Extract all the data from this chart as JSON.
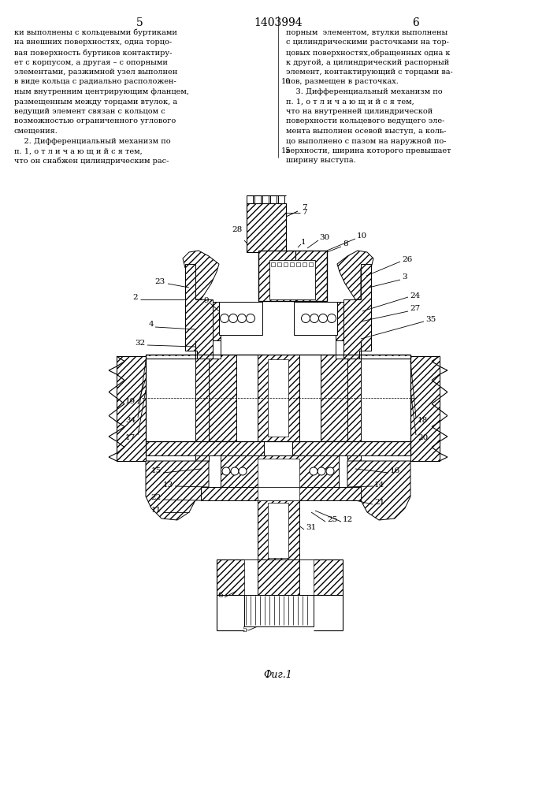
{
  "page_number_left": "5",
  "page_number_center": "1403994",
  "page_number_right": "6",
  "figure_caption": "Фиг.1",
  "left_col": [
    "ки выполнены с кольцевыми буртиками",
    "на внешних поверхностях, одна торцо-",
    "вая поверхность буртиков контактиру-",
    "ет с корпусом, а другая – с опорными",
    "элементами, разжимной узел выполнен",
    "в виде кольца с радиально расположен-",
    "ным внутренним центрирующим фланцем,",
    "размещенным между торцами втулок, а",
    "ведущий элемент связан с кольцом с",
    "возможностью ограниченного углового",
    "смещения.",
    "    2. Дифференциальный механизм по",
    "п. 1, о т л и ч а ю щ и й с я тем,",
    "что он снабжен цилиндрическим рас-"
  ],
  "right_col": [
    "порным  элементом, втулки выполнены",
    "с цилиндрическими расточками на тор-",
    "цовых поверхностях,обращенных одна к",
    "к другой, а цилиндрический распорный",
    "элемент, контактирующий с торцами ва-",
    "лов, размещен в расточках.",
    "    3. Дифференциальный механизм по",
    "п. 1, о т л и ч а ю щ и й с я тем,",
    "что на внутренней цилиндрической",
    "поверхности кольцевого ведущего эле-",
    "мента выполнен осевой выступ, а коль-",
    "цо выполнено с пазом на наружной по-",
    "верхности, ширина которого превышает",
    "ширину выступа."
  ]
}
